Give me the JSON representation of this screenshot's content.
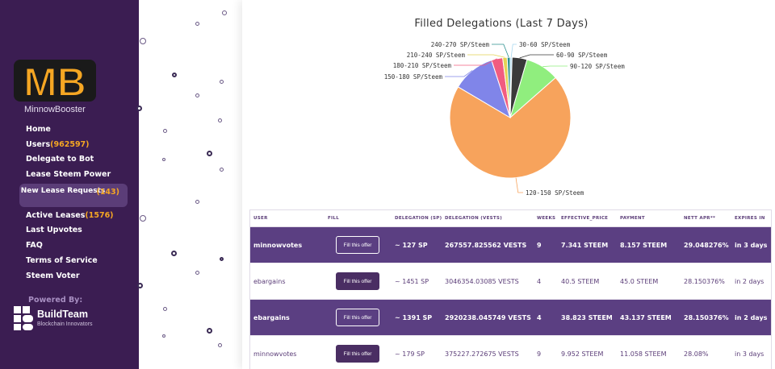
{
  "sidebar": {
    "logo_text": "MB",
    "brand_name": "MinnowBooster",
    "nav": [
      {
        "label": "Home",
        "count": ""
      },
      {
        "label": "Users",
        "count": "(962597)"
      },
      {
        "label": "Delegate to Bot",
        "count": ""
      },
      {
        "label": "Lease Steem Power",
        "count": ""
      }
    ],
    "sub_item": {
      "label": "New Lease Requests",
      "count": "(143)"
    },
    "nav2": [
      {
        "label": "Active Leases",
        "count": "(1576)"
      },
      {
        "label": "Last Upvotes",
        "count": ""
      },
      {
        "label": "FAQ",
        "count": ""
      },
      {
        "label": "Terms of Service",
        "count": ""
      },
      {
        "label": "Steem Voter",
        "count": ""
      }
    ],
    "powered_by": "Powered By:",
    "buildteam_name": "BuildTeam",
    "buildteam_tagline": "Blockchain Innovators"
  },
  "chart_data": {
    "type": "pie",
    "title": "Filled Delegations (Last 7 Days)",
    "categories": [
      "30-60 SP/Steem",
      "60-90 SP/Steem",
      "90-120 SP/Steem",
      "120-150 SP/Steem",
      "150-180 SP/Steem",
      "180-210 SP/Steem",
      "210-240 SP/Steem",
      "240-270 SP/Steem"
    ],
    "values": [
      0.5,
      4,
      9,
      70,
      11.5,
      3,
      1.2,
      0.8
    ],
    "colors": [
      "#a8d8f0",
      "#3a3a3a",
      "#90ee7e",
      "#f7a35c",
      "#8085e9",
      "#f15c80",
      "#e4d354",
      "#2b908f"
    ]
  },
  "table": {
    "headers": [
      "USER",
      "FILL",
      "DELEGATION (SP)",
      "DELEGATION (VESTS)",
      "WEEKS",
      "EFFECTIVE_PRICE",
      "PAYMENT",
      "NETT APR**",
      "EXPIRES IN"
    ],
    "button_label": "Fill this offer",
    "rows": [
      {
        "user": "minnowvotes",
        "sp": "~ 127 SP",
        "vests": "267557.825562 VESTS",
        "weeks": "9",
        "price": "7.341 STEEM",
        "payment": "8.157 STEEM",
        "apr": "29.048276%",
        "expires": "in 3 days"
      },
      {
        "user": "ebargains",
        "sp": "~ 1451 SP",
        "vests": "3046354.03085 VESTS",
        "weeks": "4",
        "price": "40.5 STEEM",
        "payment": "45.0 STEEM",
        "apr": "28.150376%",
        "expires": "in 2 days"
      },
      {
        "user": "ebargains",
        "sp": "~ 1391 SP",
        "vests": "2920238.045749 VESTS",
        "weeks": "4",
        "price": "38.823 STEEM",
        "payment": "43.137 STEEM",
        "apr": "28.150376%",
        "expires": "in 2 days"
      },
      {
        "user": "minnowvotes",
        "sp": "~ 179 SP",
        "vests": "375227.272675 VESTS",
        "weeks": "9",
        "price": "9.952 STEEM",
        "payment": "11.058 STEEM",
        "apr": "28.08%",
        "expires": "in 3 days"
      }
    ]
  }
}
